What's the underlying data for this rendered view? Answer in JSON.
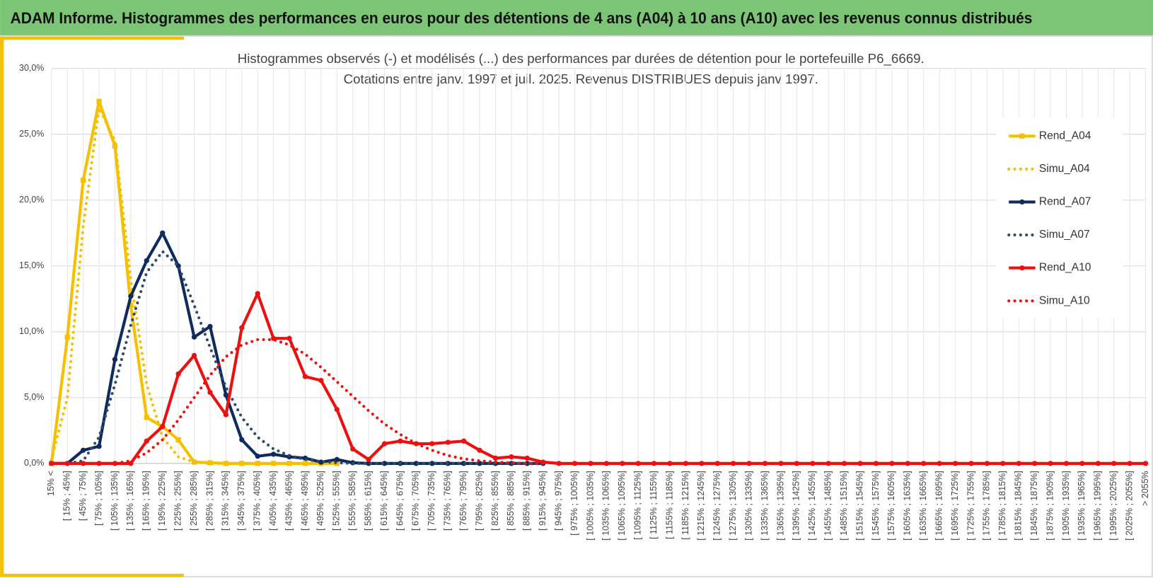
{
  "header": {
    "title": "ADAM Informe. Histogrammes des performances en euros pour des détentions de 4 ans (A04) à 10 ans (A10) avec les revenus connus distribués"
  },
  "chart_data": {
    "type": "line",
    "title": "Histogrammes observés (-) et modélisés (...) des performances par durées de détention pour le portefeuille P6_6669.",
    "subtitle": "Cotations entre janv. 1997 et juil. 2025. Revenus DISTRIBUES depuis janv 1997.",
    "categories": [
      "15% <",
      "[ 15% ; 45%]",
      "[ 45% ; 75%]",
      "[ 75% ; 105%]",
      "[ 105% ; 135%]",
      "[ 135% ; 165%]",
      "[ 165% ; 195%]",
      "[ 195% ; 225%]",
      "[ 225% ; 255%]",
      "[ 255% ; 285%]",
      "[ 285% ; 315%]",
      "[ 315% ; 345%]",
      "[ 345% ; 375%]",
      "[ 375% ; 405%]",
      "[ 405% ; 435%]",
      "[ 435% ; 465%]",
      "[ 465% ; 495%]",
      "[ 495% ; 525%]",
      "[ 525% ; 555%]",
      "[ 555% ; 585%]",
      "[ 585% ; 615%]",
      "[ 615% ; 645%]",
      "[ 645% ; 675%]",
      "[ 675% ; 705%]",
      "[ 705% ; 735%]",
      "[ 735% ; 765%]",
      "[ 765% ; 795%]",
      "[ 795% ; 825%]",
      "[ 825% ; 855%]",
      "[ 855% ; 885%]",
      "[ 885% ; 915%]",
      "[ 915% ; 945%]",
      "[ 945% ; 975%]",
      "[ 975% ; 1005%]",
      "[ 1005% ; 1035%]",
      "[ 1035% ; 1065%]",
      "[ 1065% ; 1095%]",
      "[ 1095% ; 1125%]",
      "[ 1125% ; 1155%]",
      "[ 1155% ; 1185%]",
      "[ 1185% ; 1215%]",
      "[ 1215% ; 1245%]",
      "[ 1245% ; 1275%]",
      "[ 1275% ; 1305%]",
      "[ 1305% ; 1335%]",
      "[ 1335% ; 1365%]",
      "[ 1365% ; 1395%]",
      "[ 1395% ; 1425%]",
      "[ 1425% ; 1455%]",
      "[ 1455% ; 1485%]",
      "[ 1485% ; 1515%]",
      "[ 1515% ; 1545%]",
      "[ 1545% ; 1575%]",
      "[ 1575% ; 1605%]",
      "[ 1605% ; 1635%]",
      "[ 1635% ; 1665%]",
      "[ 1665% ; 1695%]",
      "[ 1695% ; 1725%]",
      "[ 1725% ; 1755%]",
      "[ 1755% ; 1785%]",
      "[ 1785% ; 1815%]",
      "[ 1815% ; 1845%]",
      "[ 1845% ; 1875%]",
      "[ 1875% ; 1905%]",
      "[ 1905% ; 1935%]",
      "[ 1935% ; 1965%]",
      "[ 1965% ; 1995%]",
      "[ 1995% ; 2025%]",
      "[ 2025% ; 2055%]",
      "> 2055%"
    ],
    "series": [
      {
        "name": "Rend_A04",
        "color": "#f5c000",
        "style": "solid",
        "marker": "square",
        "values": [
          0,
          9.6,
          21.5,
          27.5,
          24.1,
          12,
          3.5,
          2.8,
          1.8,
          0.1,
          0.05,
          0,
          0,
          0,
          0,
          0,
          0,
          0,
          0,
          null,
          null,
          null,
          null,
          null,
          null,
          null,
          null,
          null,
          null,
          null,
          null,
          null,
          null,
          null,
          null,
          null,
          null,
          null,
          null,
          null,
          null,
          null,
          null,
          null,
          null,
          null,
          null,
          null,
          null,
          null,
          null,
          null,
          null,
          null,
          null,
          null,
          null,
          null,
          null,
          null,
          null,
          null,
          null,
          null,
          null,
          null,
          null,
          null,
          null,
          null
        ]
      },
      {
        "name": "Simu_A04",
        "color": "#f5c000",
        "style": "dotted",
        "marker": "none",
        "values": [
          0.3,
          5,
          18,
          27,
          24.5,
          14,
          6,
          2,
          0.5,
          0.1,
          0,
          0,
          0,
          0,
          0,
          0,
          0,
          0,
          0,
          null,
          null,
          null,
          null,
          null,
          null,
          null,
          null,
          null,
          null,
          null,
          null,
          null,
          null,
          null,
          null,
          null,
          null,
          null,
          null,
          null,
          null,
          null,
          null,
          null,
          null,
          null,
          null,
          null,
          null,
          null,
          null,
          null,
          null,
          null,
          null,
          null,
          null,
          null,
          null,
          null,
          null,
          null,
          null,
          null,
          null,
          null,
          null,
          null,
          null,
          null
        ]
      },
      {
        "name": "Rend_A07",
        "color": "#0f2a5c",
        "style": "solid",
        "marker": "circle",
        "values": [
          0,
          0,
          1.0,
          1.3,
          7.9,
          12.7,
          15.4,
          17.5,
          15.0,
          9.6,
          10.4,
          5.2,
          1.8,
          0.55,
          0.7,
          0.5,
          0.4,
          0.1,
          0.3,
          0.05,
          0,
          0,
          0,
          0,
          0,
          0,
          0,
          0,
          0,
          0,
          0,
          0,
          null,
          null,
          null,
          null,
          null,
          null,
          null,
          null,
          null,
          null,
          null,
          null,
          null,
          null,
          null,
          null,
          null,
          null,
          null,
          null,
          null,
          null,
          null,
          null,
          null,
          null,
          null,
          null,
          null,
          null,
          null,
          null,
          null,
          null,
          null,
          null,
          null,
          null
        ]
      },
      {
        "name": "Simu_A07",
        "color": "#2e4a6e",
        "style": "dotted",
        "marker": "none",
        "values": [
          0,
          0,
          0.2,
          2,
          6,
          10.5,
          14.5,
          16.1,
          15,
          12,
          8.8,
          5.8,
          3.5,
          2,
          1.1,
          0.6,
          0.3,
          0.15,
          0.05,
          0,
          0,
          0,
          0,
          0,
          0,
          0,
          0,
          0,
          0,
          0,
          0,
          0,
          null,
          null,
          null,
          null,
          null,
          null,
          null,
          null,
          null,
          null,
          null,
          null,
          null,
          null,
          null,
          null,
          null,
          null,
          null,
          null,
          null,
          null,
          null,
          null,
          null,
          null,
          null,
          null,
          null,
          null,
          null,
          null,
          null,
          null,
          null,
          null,
          null,
          null
        ]
      },
      {
        "name": "Rend_A10",
        "color": "#ee1010",
        "style": "solid",
        "marker": "circle",
        "values": [
          0,
          0,
          0,
          0,
          0,
          0,
          1.7,
          2.8,
          6.8,
          8.2,
          5.4,
          3.7,
          10.3,
          12.9,
          9.5,
          9.5,
          6.6,
          6.3,
          4.1,
          1.1,
          0.3,
          1.5,
          1.7,
          1.5,
          1.5,
          1.6,
          1.7,
          1.0,
          0.4,
          0.5,
          0.4,
          0.1,
          0,
          0,
          0,
          0,
          0,
          0,
          0,
          0,
          0,
          0,
          0,
          0,
          0,
          0,
          0,
          0,
          0,
          0,
          0,
          0,
          0,
          0,
          0,
          0,
          0,
          0,
          0,
          0,
          0,
          0,
          0,
          0,
          0,
          0,
          0,
          0,
          0,
          0
        ]
      },
      {
        "name": "Simu_A10",
        "color": "#ee1010",
        "style": "dotted",
        "marker": "none",
        "values": [
          0,
          0,
          0,
          0,
          0,
          0.2,
          0.8,
          1.8,
          3.3,
          5,
          6.7,
          8.1,
          9.0,
          9.4,
          9.4,
          9.0,
          8.3,
          7.3,
          6.2,
          5.1,
          4.0,
          3.0,
          2.2,
          1.5,
          1.0,
          0.6,
          0.35,
          0.2,
          0.1,
          0.05,
          0,
          0,
          null,
          null,
          null,
          null,
          null,
          null,
          null,
          null,
          null,
          null,
          null,
          null,
          null,
          null,
          null,
          null,
          null,
          null,
          null,
          null,
          null,
          null,
          null,
          null,
          null,
          null,
          null,
          null,
          null,
          null,
          null,
          null,
          null,
          null,
          null,
          null,
          null,
          null
        ]
      }
    ],
    "ylim": [
      0,
      30
    ],
    "yticks": [
      {
        "value": 0,
        "label": "0,0%"
      },
      {
        "value": 5,
        "label": "5,0%"
      },
      {
        "value": 10,
        "label": "10,0%"
      },
      {
        "value": 15,
        "label": "15,0%"
      },
      {
        "value": 20,
        "label": "20,0%"
      },
      {
        "value": 25,
        "label": "25,0%"
      },
      {
        "value": 30,
        "label": "30,0%"
      }
    ],
    "grid": true,
    "legend": "right"
  }
}
